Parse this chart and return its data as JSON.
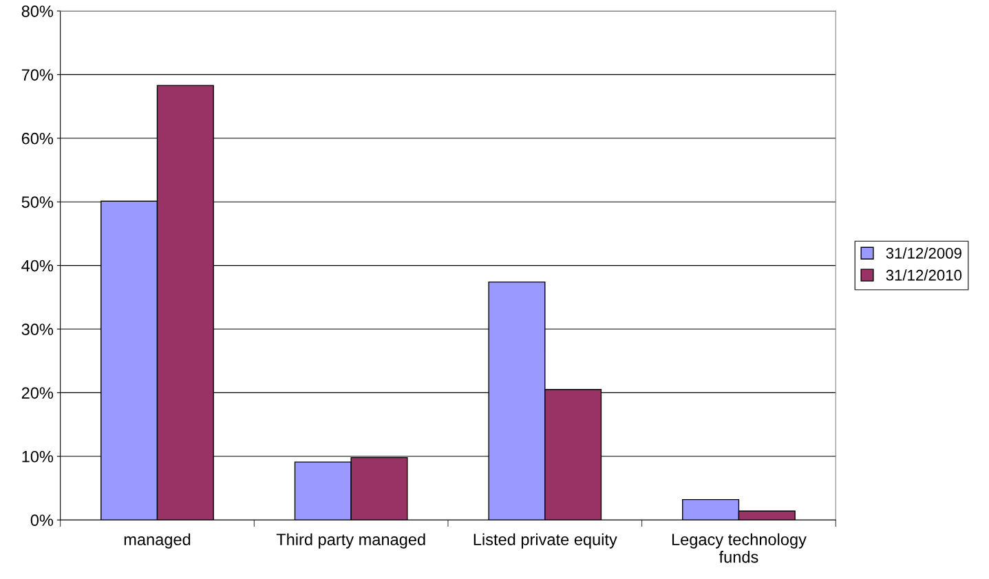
{
  "chart_data": {
    "type": "bar",
    "categories": [
      "managed",
      "Third party managed",
      "Listed private equity",
      "Legacy technology funds"
    ],
    "series": [
      {
        "name": "31/12/2009",
        "color": "#9999ff",
        "values": [
          50.1,
          9.1,
          37.4,
          3.2
        ]
      },
      {
        "name": "31/12/2010",
        "color": "#993366",
        "values": [
          68.3,
          9.8,
          20.5,
          1.4
        ]
      }
    ],
    "ylim": [
      0,
      80
    ],
    "yticks": [
      {
        "value": 0,
        "label": "0%"
      },
      {
        "value": 10,
        "label": "10%"
      },
      {
        "value": 20,
        "label": "20%"
      },
      {
        "value": 30,
        "label": "30%"
      },
      {
        "value": 40,
        "label": "40%"
      },
      {
        "value": 50,
        "label": "50%"
      },
      {
        "value": 60,
        "label": "60%"
      },
      {
        "value": 70,
        "label": "70%"
      },
      {
        "value": 80,
        "label": "80%"
      }
    ],
    "grid": "y",
    "legend": "right"
  }
}
